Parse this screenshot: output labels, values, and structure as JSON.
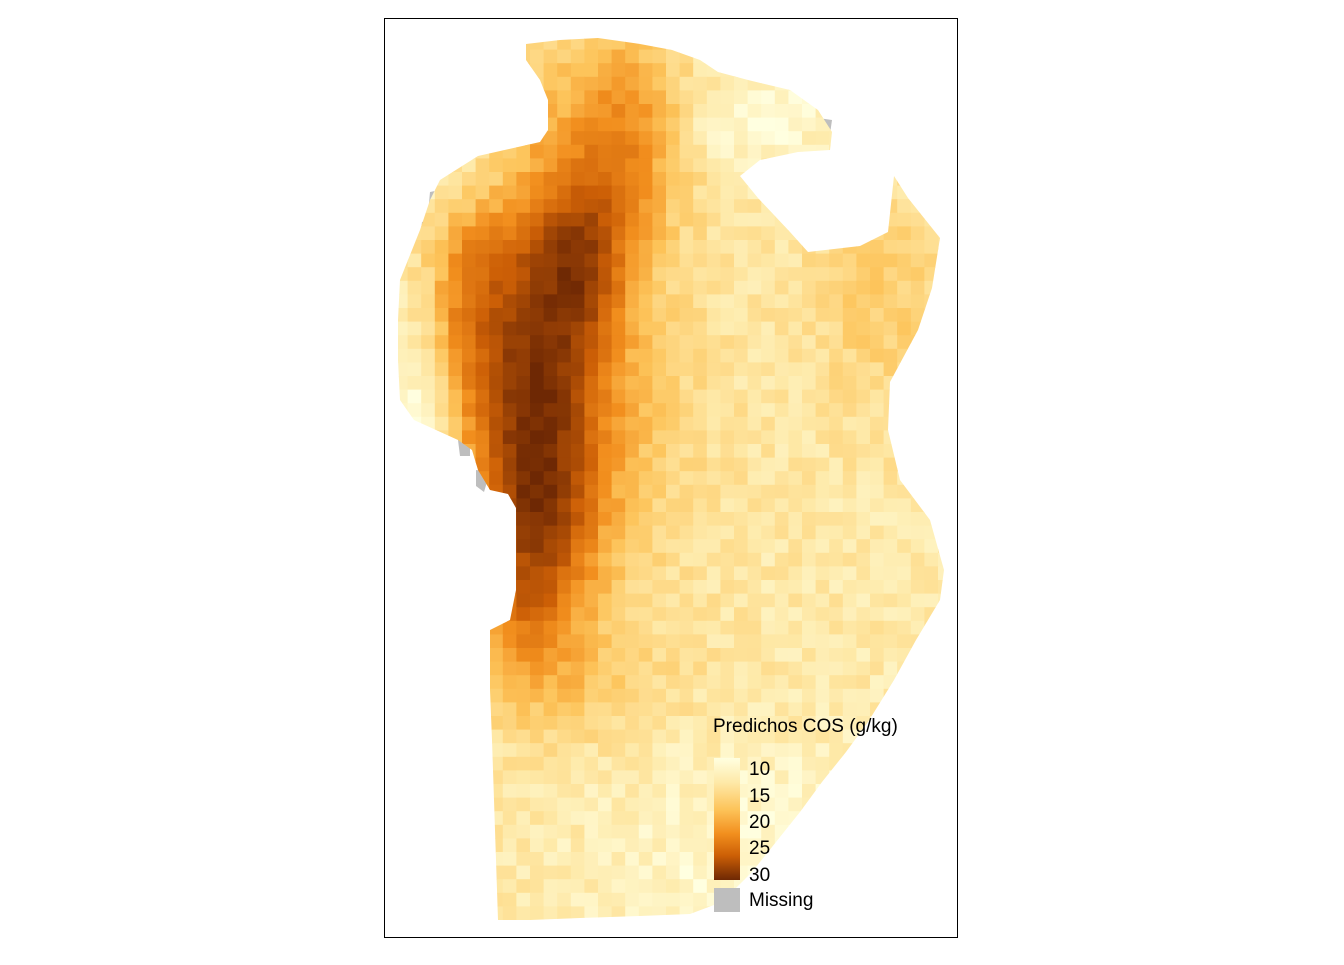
{
  "map": {
    "legend": {
      "title": "Predichos COS (g/kg)",
      "ticks": [
        "10",
        "15",
        "20",
        "25",
        "30"
      ],
      "missing_label": "Missing",
      "colors": {
        "low": "#FFFFE0",
        "mid_low": "#FEE9A8",
        "mid": "#FDC45A",
        "mid_high": "#F28F1E",
        "high": "#CC5F06",
        "max": "#6E2804",
        "missing": "#BEBEBE",
        "border": "#000000"
      },
      "range": [
        8,
        31
      ]
    }
  }
}
